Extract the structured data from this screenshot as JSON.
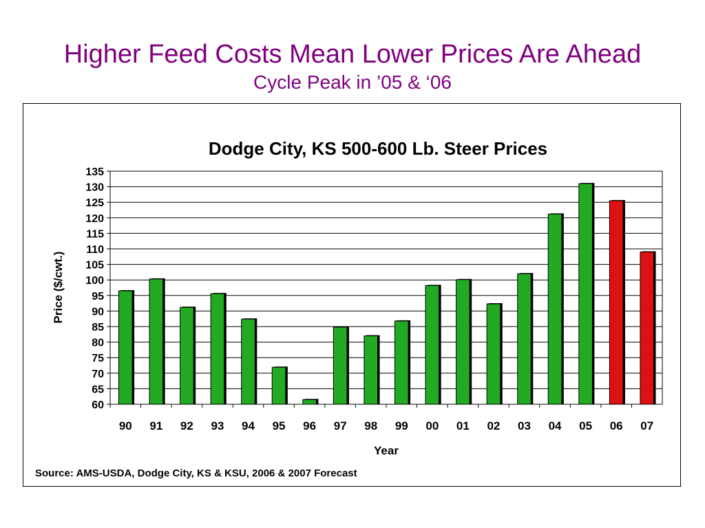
{
  "slide": {
    "title": "Higher Feed Costs Mean Lower Prices Are Ahead",
    "subtitle": "Cycle Peak in ’05 & ‘06"
  },
  "colors": {
    "title": "#800080",
    "actual_bar": "#22aa22",
    "forecast_bar": "#dd1111",
    "bar_shadow": "#000000",
    "gridline": "#000000"
  },
  "chart_data": {
    "type": "bar",
    "title": "Dodge City, KS 500-600 Lb. Steer Prices",
    "xlabel": "Year",
    "ylabel": "Price ($/cwt.)",
    "categories": [
      "90",
      "91",
      "92",
      "93",
      "94",
      "95",
      "96",
      "97",
      "98",
      "99",
      "00",
      "01",
      "02",
      "03",
      "04",
      "05",
      "06",
      "07"
    ],
    "values": [
      96.5,
      100.3,
      91.2,
      95.6,
      87.4,
      71.9,
      61.5,
      84.8,
      82.0,
      86.8,
      98.2,
      100.1,
      92.3,
      102.0,
      121.2,
      131.0,
      125.5,
      109.0
    ],
    "forecast": [
      false,
      false,
      false,
      false,
      false,
      false,
      false,
      false,
      false,
      false,
      false,
      false,
      false,
      false,
      false,
      false,
      true,
      true
    ],
    "ylim": [
      60,
      135
    ],
    "ytick_step": 5,
    "grid": true,
    "source": "Source:  AMS-USDA, Dodge City, KS & KSU, 2006 & 2007 Forecast"
  }
}
